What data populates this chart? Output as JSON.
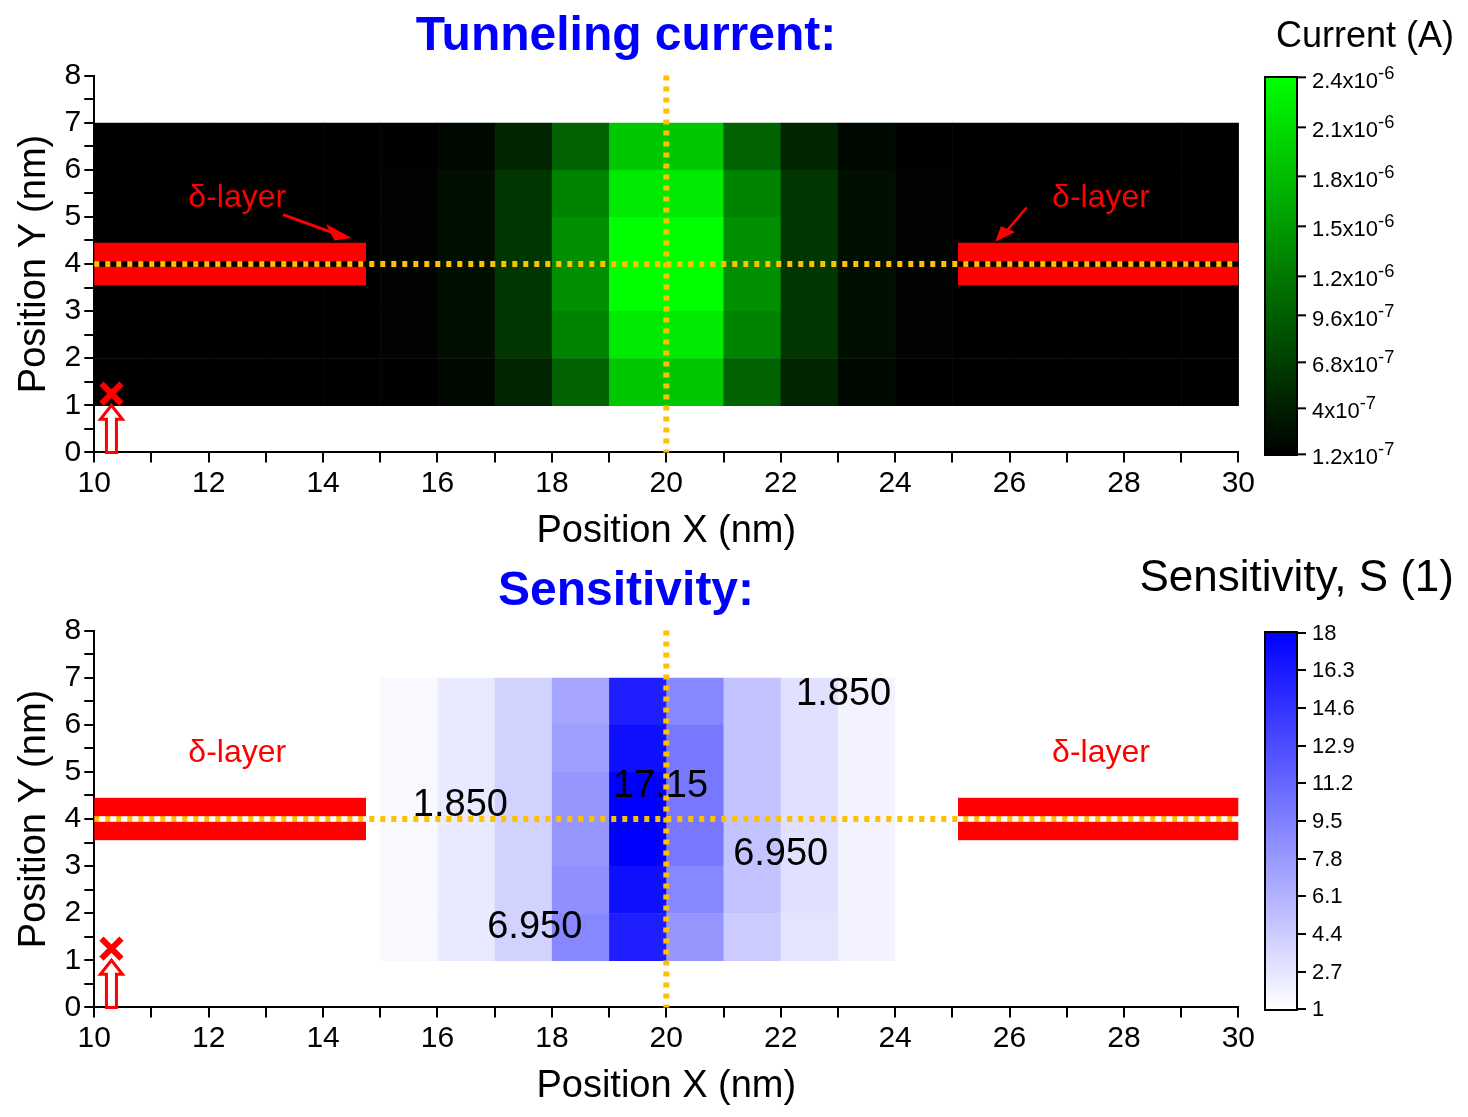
{
  "chart_data": [
    {
      "type": "heatmap",
      "title": "Tunneling current:",
      "xlabel": "Position X (nm)",
      "ylabel": "Position Y (nm)",
      "clabel": "Current (A)",
      "xlim": [
        10,
        30
      ],
      "ylim": [
        0,
        8
      ],
      "xticks": [
        10,
        {
          "value": 11,
          "label": null
        },
        12,
        {
          "value": 13,
          "label": null
        },
        14,
        {
          "value": 15,
          "label": null
        },
        16,
        {
          "value": 17,
          "label": null
        },
        18,
        {
          "value": 19,
          "label": null
        },
        20,
        {
          "value": 21,
          "label": null
        },
        22,
        {
          "value": 23,
          "label": null
        },
        24,
        {
          "value": 25,
          "label": null
        },
        26,
        {
          "value": 27,
          "label": null
        },
        28,
        {
          "value": 29,
          "label": null
        },
        30
      ],
      "yticks": [
        0,
        {
          "value": 0.5,
          "label": null
        },
        1,
        {
          "value": 1.5,
          "label": null
        },
        2,
        {
          "value": 2.5,
          "label": null
        },
        3,
        {
          "value": 3.5,
          "label": null
        },
        4,
        {
          "value": 4.5,
          "label": null
        },
        5,
        {
          "value": 5.5,
          "label": null
        },
        6,
        {
          "value": 6.5,
          "label": null
        },
        7,
        {
          "value": 7.5,
          "label": null
        },
        8
      ],
      "x": [
        10.5,
        11.5,
        12.5,
        13.5,
        14.5,
        15.5,
        16.5,
        17.5,
        18.5,
        19.5,
        20.5,
        21.5,
        22.5,
        23.5,
        24.5,
        25.5,
        26.5,
        27.5,
        28.5,
        29.5
      ],
      "y": [
        6.5,
        5.5,
        4.5,
        3.5,
        2.5,
        1.5
      ],
      "cells": [
        [
          1.2e-07,
          1.2e-07,
          1.2e-07,
          1.2e-07,
          1.2e-07,
          1.3e-07,
          2e-07,
          4.5e-07,
          1e-06,
          1.9e-06,
          1.9e-06,
          1e-06,
          4.5e-07,
          2e-07,
          1.3e-07,
          1.2e-07,
          1.2e-07,
          1.2e-07,
          1.2e-07,
          1.2e-07
        ],
        [
          1.2e-07,
          1.2e-07,
          1.2e-07,
          1.2e-07,
          1.2e-07,
          1.5e-07,
          2.5e-07,
          6e-07,
          1.3e-06,
          2.2e-06,
          2.2e-06,
          1.3e-06,
          6e-07,
          2.5e-07,
          1.5e-07,
          1.2e-07,
          1.2e-07,
          1.2e-07,
          1.2e-07,
          1.2e-07
        ],
        [
          1.2e-07,
          1.2e-07,
          1.2e-07,
          1.2e-07,
          1.2e-07,
          1.5e-07,
          2.5e-07,
          6e-07,
          1.4e-06,
          2.4e-06,
          2.4e-06,
          1.4e-06,
          6e-07,
          2.5e-07,
          1.5e-07,
          1.2e-07,
          1.2e-07,
          1.2e-07,
          1.2e-07,
          1.2e-07
        ],
        [
          1.2e-07,
          1.2e-07,
          1.2e-07,
          1.2e-07,
          1.2e-07,
          1.5e-07,
          2.5e-07,
          6e-07,
          1.4e-06,
          2.4e-06,
          2.4e-06,
          1.4e-06,
          6e-07,
          2.5e-07,
          1.5e-07,
          1.2e-07,
          1.2e-07,
          1.2e-07,
          1.2e-07,
          1.2e-07
        ],
        [
          1.2e-07,
          1.2e-07,
          1.2e-07,
          1.2e-07,
          1.2e-07,
          1.5e-07,
          2.5e-07,
          6e-07,
          1.3e-06,
          2.2e-06,
          2.2e-06,
          1.3e-06,
          6e-07,
          2.5e-07,
          1.5e-07,
          1.2e-07,
          1.2e-07,
          1.2e-07,
          1.2e-07,
          1.2e-07
        ],
        [
          1.2e-07,
          1.2e-07,
          1.2e-07,
          1.2e-07,
          1.2e-07,
          1.3e-07,
          2e-07,
          4.5e-07,
          1e-06,
          1.9e-06,
          1.9e-06,
          1e-06,
          4.5e-07,
          2e-07,
          1.3e-07,
          1.2e-07,
          1.2e-07,
          1.2e-07,
          1.2e-07,
          1.2e-07
        ]
      ],
      "clim": [
        1.2e-07,
        2.4e-06
      ],
      "cticks": [
        {
          "value": 1.2e-07,
          "label": "1.2x10$^{-7}$"
        },
        {
          "value": 4e-07,
          "label": "4x10$^{-7}$"
        },
        {
          "value": 6.8e-07,
          "label": "6.8x10$^{-7}$"
        },
        {
          "value": 9.6e-07,
          "label": "9.6x10$^{-7}$"
        },
        {
          "value": 1.2e-06,
          "label": "1.2x10$^{-6}$"
        },
        {
          "value": 1.5e-06,
          "label": "1.5x10$^{-6}$"
        },
        {
          "value": 1.8e-06,
          "label": "1.8x10$^{-6}$"
        },
        {
          "value": 2.1e-06,
          "label": "2.1x10$^{-6}$"
        },
        {
          "value": 2.4e-06,
          "label": "2.4x10$^{-6}$"
        }
      ],
      "ref_lines": [
        {
          "axis": "x",
          "value": 20,
          "color": "#ffc000",
          "line_style": "dotted"
        },
        {
          "axis": "y",
          "value": 4,
          "color": "#ffc000",
          "line_style": "dotted"
        }
      ],
      "annotations": [
        "δ-layer",
        "δ-layer"
      ]
    },
    {
      "type": "heatmap",
      "title": "Sensitivity:",
      "xlabel": "Position X (nm)",
      "ylabel": "Position Y (nm)",
      "clabel": "Sensitivity, S (1)",
      "xlim": [
        10,
        30
      ],
      "ylim": [
        0,
        8
      ],
      "xticks": [
        10,
        {
          "value": 11,
          "label": null
        },
        12,
        {
          "value": 13,
          "label": null
        },
        14,
        {
          "value": 15,
          "label": null
        },
        16,
        {
          "value": 17,
          "label": null
        },
        18,
        {
          "value": 19,
          "label": null
        },
        20,
        {
          "value": 21,
          "label": null
        },
        22,
        {
          "value": 23,
          "label": null
        },
        24,
        {
          "value": 25,
          "label": null
        },
        26,
        {
          "value": 27,
          "label": null
        },
        28,
        {
          "value": 29,
          "label": null
        },
        30
      ],
      "yticks": [
        0,
        {
          "value": 0.5,
          "label": null
        },
        1,
        {
          "value": 1.5,
          "label": null
        },
        2,
        {
          "value": 2.5,
          "label": null
        },
        3,
        {
          "value": 3.5,
          "label": null
        },
        4,
        {
          "value": 4.5,
          "label": null
        },
        5,
        {
          "value": 5.5,
          "label": null
        },
        6,
        {
          "value": 6.5,
          "label": null
        },
        7,
        {
          "value": 7.5,
          "label": null
        },
        8
      ],
      "x": [
        15.5,
        16.5,
        17.5,
        18.5,
        19.5,
        20.5,
        21.5,
        22.5,
        23.5,
        24.5,
        25.5,
        26.5,
        27.5,
        28.5,
        29.5
      ],
      "y": [
        6.5,
        5.5,
        4.5,
        3.5,
        2.5,
        1.5
      ],
      "cells": [
        [
          1.5,
          2.5,
          4,
          7,
          16,
          9,
          5,
          3,
          1.8,
          1,
          1,
          1,
          1,
          1,
          1
        ],
        [
          1.5,
          2.5,
          4,
          7.5,
          17,
          10,
          5,
          3,
          1.8,
          1,
          1,
          1,
          1,
          1,
          1
        ],
        [
          1.5,
          2.5,
          4,
          8,
          18,
          10,
          5,
          3,
          1.8,
          1,
          1,
          1,
          1,
          1,
          1
        ],
        [
          1.5,
          2.5,
          4,
          8,
          18,
          10,
          5,
          3,
          1.8,
          1,
          1,
          1,
          1,
          1,
          1
        ],
        [
          1.5,
          2.5,
          4,
          8.5,
          17,
          9,
          5,
          3,
          1.8,
          1,
          1,
          1,
          1,
          1,
          1
        ],
        [
          1.5,
          2.5,
          4,
          9,
          16,
          8,
          4.5,
          2.8,
          1.8,
          1,
          1,
          1,
          1,
          1,
          1
        ]
      ],
      "clim": [
        1,
        18
      ],
      "cticks": [
        1,
        2.7,
        4.4,
        6.1,
        7.8,
        9.5,
        11.2,
        12.9,
        14.6,
        16.3,
        18
      ],
      "ref_lines": [
        {
          "axis": "x",
          "value": 20,
          "color": "#ffc000",
          "line_style": "dotted"
        },
        {
          "axis": "y",
          "value": 4,
          "color": "#ffc000",
          "line_style": "dotted"
        }
      ],
      "annotations": [
        "δ-layer",
        "δ-layer",
        "1.850",
        "1.850",
        "17.15",
        "6.950",
        "6.950"
      ]
    }
  ]
}
